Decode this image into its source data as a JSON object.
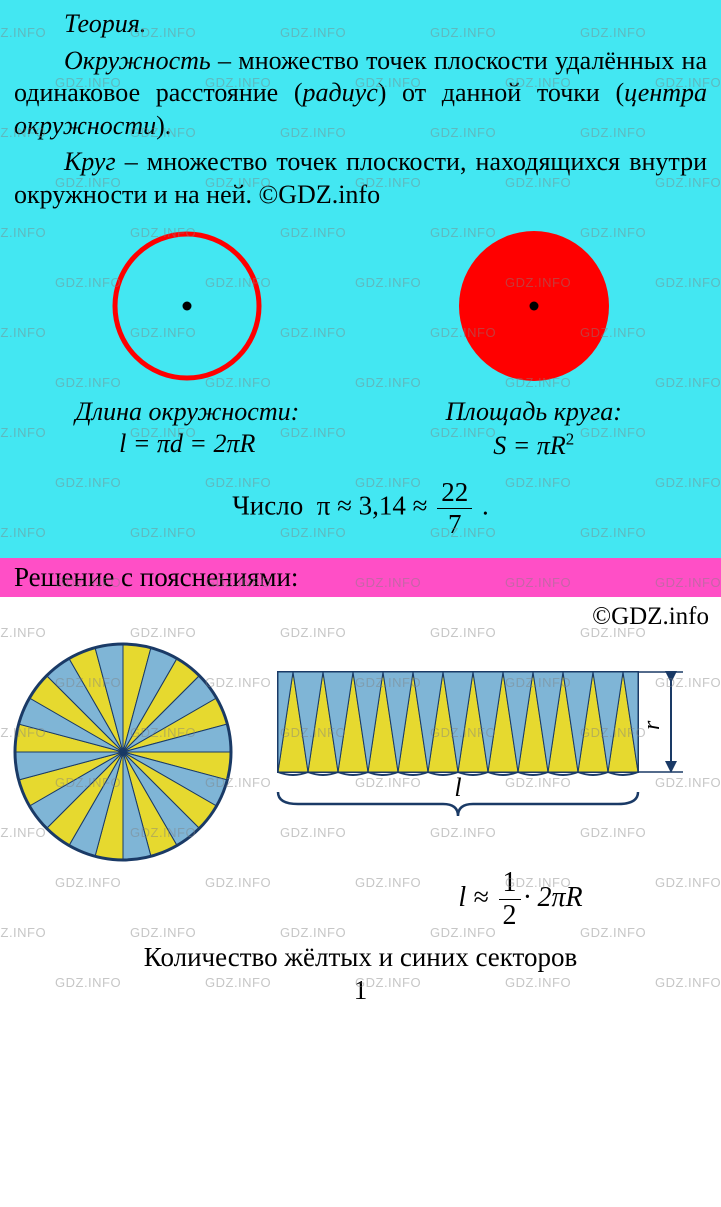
{
  "watermark_text": "GDZ.INFO",
  "theory": {
    "title": "Теория.",
    "def1_parts": {
      "term": "Окружность",
      "dash": " – множество точек плоскости удалённых на одинаковое рас­стояние (",
      "radius": "радиус",
      "mid": ") от данной точки (",
      "center": "цен­тра окружности",
      "end": ")."
    },
    "def2_parts": {
      "term": "Круг",
      "rest": " – множество точек плоскости, находящихся внутри окружности и на ней. ©GDZ.info"
    },
    "circle": {
      "stroke": "#ff0000",
      "fill": "none",
      "dot": "#000000",
      "label": "Длина окружности:",
      "formula_html": "l = πd = 2πR"
    },
    "disk": {
      "fill": "#ff0000",
      "dot": "#000000",
      "label": "Площадь круга:",
      "formula_base": "S = πR",
      "formula_exp": "2"
    },
    "pi": {
      "prefix": "Число  π ≈ 3,14 ≈ ",
      "num": "22",
      "den": "7",
      "suffix": " ."
    }
  },
  "solution": {
    "header": "Решение с пояснениями:",
    "copyright": "©GDZ.info",
    "sector_circle": {
      "sectors": 24,
      "color_a": "#e6d92f",
      "color_b": "#7fb5d6",
      "border": "#1a3a66"
    },
    "rect": {
      "triangles": 12,
      "color_a": "#e6d92f",
      "color_b": "#7fb5d6",
      "border": "#1a3a66",
      "l_label": "l",
      "r_label": "r"
    },
    "rect_formula": {
      "prefix": "l ≈ ",
      "num": "1",
      "den": "2",
      "suffix": "· 2πR"
    },
    "bottom_line1": "Количество жёлтых и синих секторов",
    "partial_num": "1"
  },
  "colors": {
    "theory_bg": "#43e7f2",
    "header_bg": "#ff4fc6"
  }
}
